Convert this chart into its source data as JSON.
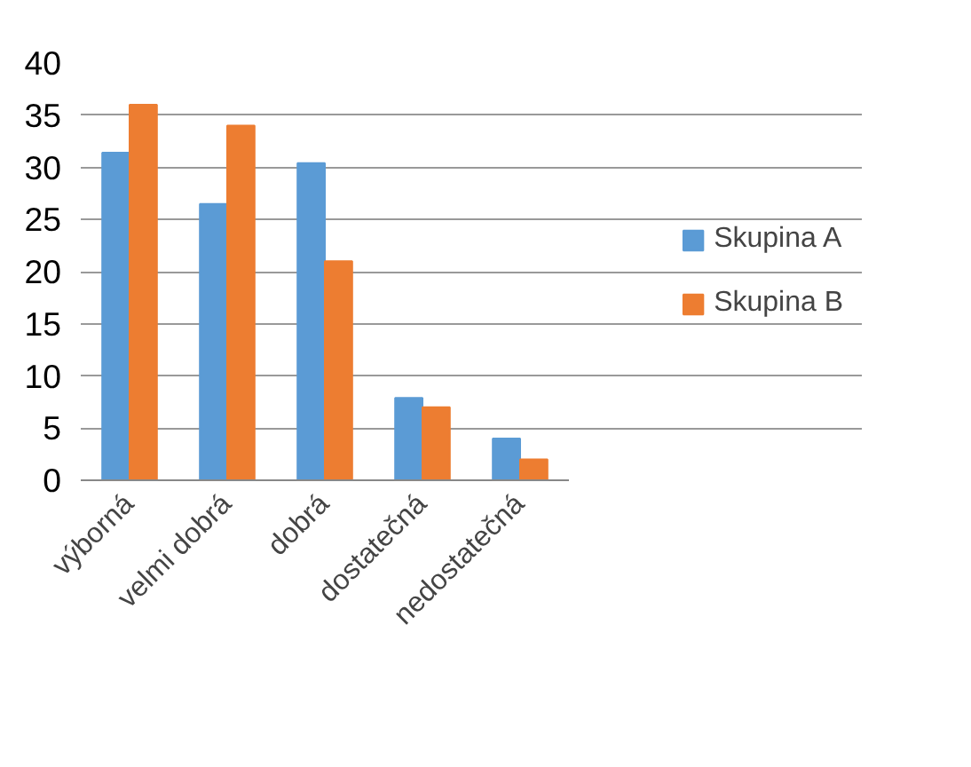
{
  "chart_data": {
    "type": "bar",
    "categories": [
      "výborná",
      "velmi dobrá",
      "dobrá",
      "dostatečná",
      "nedostatečná"
    ],
    "series": [
      {
        "name": "Skupina A",
        "color": "#5b9bd5",
        "values": [
          31.4,
          26.5,
          30.4,
          7.9,
          4.0
        ]
      },
      {
        "name": "Skupina B",
        "color": "#ed7d31",
        "values": [
          36,
          34,
          21,
          7,
          2
        ]
      }
    ],
    "ylim": [
      0,
      40
    ],
    "yticks": [
      0,
      5,
      10,
      15,
      20,
      25,
      30,
      35,
      40
    ],
    "grid": "y",
    "legend": "right"
  }
}
